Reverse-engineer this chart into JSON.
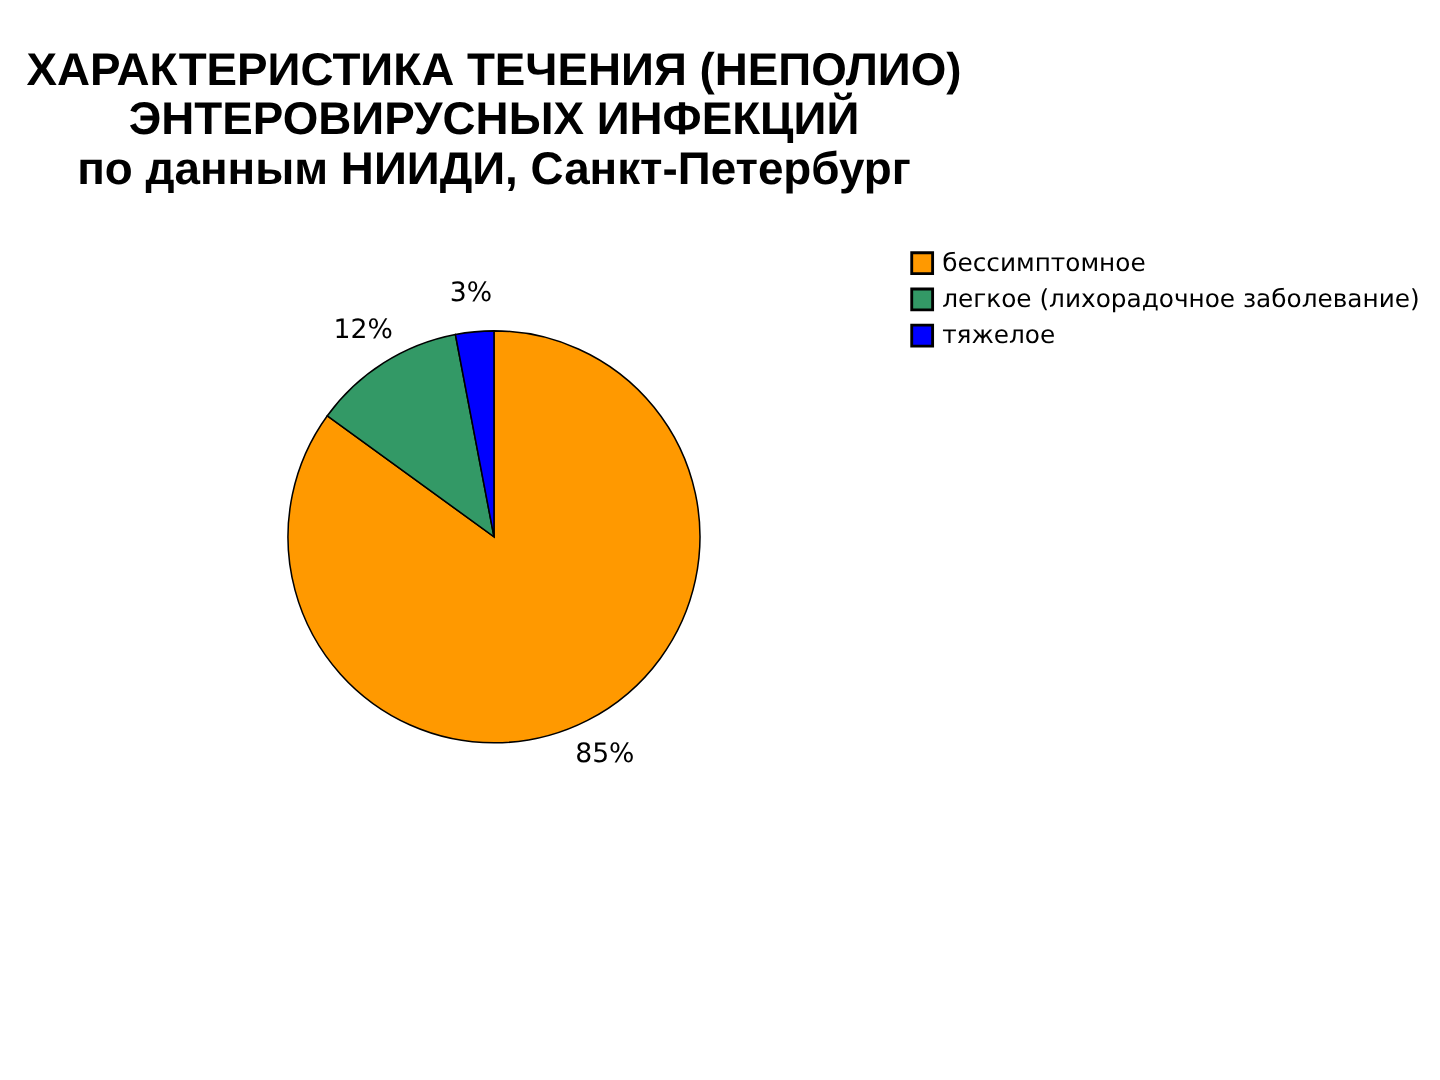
{
  "chart_data": {
    "type": "pie",
    "title": "ХАРАКТЕРИСТИКА  ТЕЧЕНИЯ (НЕПОЛИО)\nЭНТЕРОВИРУСНЫХ  ИНФЕКЦИЙ\nпо данным НИИДИ, Санкт-Петербург",
    "categories": [
      "бессимптомное",
      "легкое (лихорадочное заболевание)",
      "тяжелое"
    ],
    "values": [
      85,
      12,
      3
    ],
    "colors": [
      "#ff9900",
      "#339966",
      "#0000ff"
    ],
    "value_labels": [
      "85%",
      "12%",
      "3%"
    ],
    "legend": "right"
  }
}
